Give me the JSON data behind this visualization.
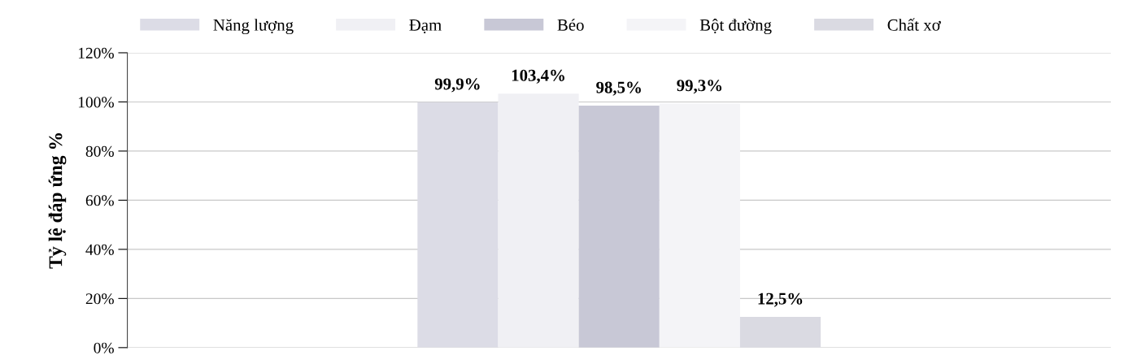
{
  "chart_data": {
    "type": "bar",
    "ylabel": "Tỷ lệ đáp ứng %",
    "categories": [
      null
    ],
    "series": [
      {
        "name": "Năng lượng",
        "color": "#dcdce6",
        "values": [
          99.9
        ],
        "value_labels": [
          "99,9%"
        ]
      },
      {
        "name": "Đạm",
        "color": "#f0f0f4",
        "values": [
          103.4
        ],
        "value_labels": [
          "103,4%"
        ]
      },
      {
        "name": "Béo",
        "color": "#c8c8d6",
        "values": [
          98.5
        ],
        "value_labels": [
          "98,5%"
        ]
      },
      {
        "name": "Bột đường",
        "color": "#f4f4f7",
        "values": [
          99.3
        ],
        "value_labels": [
          "99,3%"
        ]
      },
      {
        "name": "Chất xơ",
        "color": "#dadae2",
        "values": [
          12.5
        ],
        "value_labels": [
          "12,5%"
        ]
      }
    ],
    "ylim": [
      0,
      120
    ],
    "yticks": [
      {
        "value": 0,
        "label": "0%"
      },
      {
        "value": 20,
        "label": "20%"
      },
      {
        "value": 40,
        "label": "40%"
      },
      {
        "value": 60,
        "label": "60%"
      },
      {
        "value": 80,
        "label": "80%"
      },
      {
        "value": 100,
        "label": "100%"
      },
      {
        "value": 120,
        "label": "120%"
      }
    ],
    "grid": "y",
    "legend": "top",
    "tick_labels": "y"
  }
}
